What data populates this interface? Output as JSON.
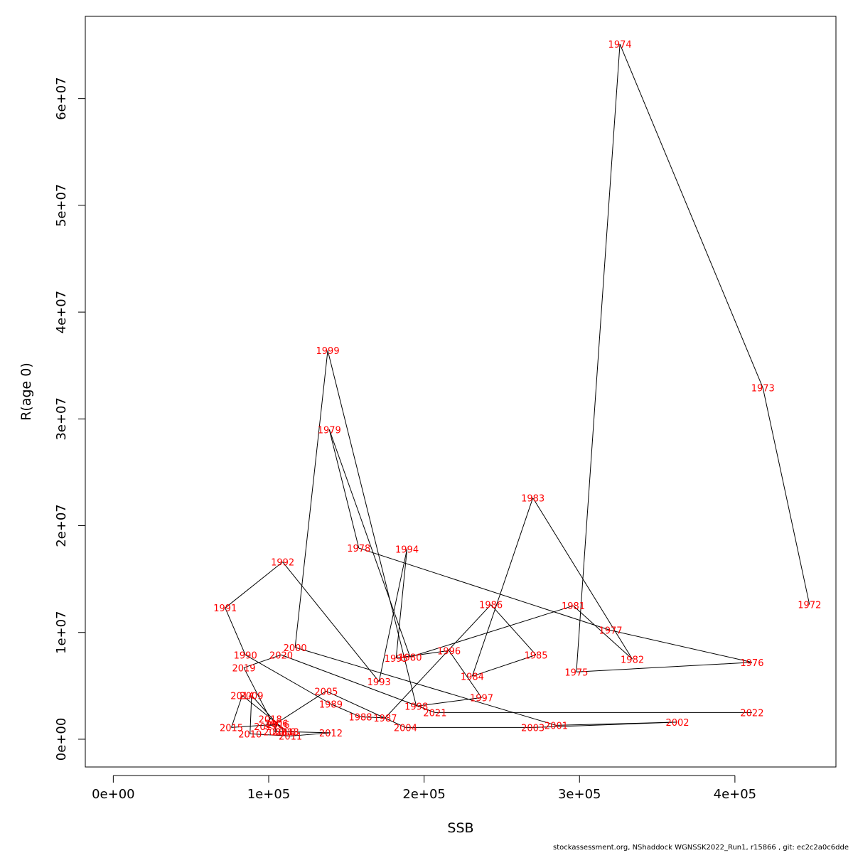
{
  "chart_data": {
    "type": "line",
    "xlabel": "SSB",
    "ylabel": "R(age 0)",
    "xlim": [
      -18000,
      465000
    ],
    "ylim": [
      -2600000,
      67700000
    ],
    "x_ticks": [
      {
        "value": 0,
        "label": "0e+00"
      },
      {
        "value": 100000,
        "label": "1e+05"
      },
      {
        "value": 200000,
        "label": "2e+05"
      },
      {
        "value": 300000,
        "label": "3e+05"
      },
      {
        "value": 400000,
        "label": "4e+05"
      }
    ],
    "y_ticks": [
      {
        "value": 0,
        "label": "0e+00"
      },
      {
        "value": 10000000,
        "label": "1e+07"
      },
      {
        "value": 20000000,
        "label": "2e+07"
      },
      {
        "value": 30000000,
        "label": "3e+07"
      },
      {
        "value": 40000000,
        "label": "4e+07"
      },
      {
        "value": 50000000,
        "label": "5e+07"
      },
      {
        "value": 60000000,
        "label": "6e+07"
      }
    ],
    "line_color": "#000000",
    "label_color": "#ff0000",
    "points": [
      {
        "year": "1972",
        "ssb": 448000,
        "r": 12600000
      },
      {
        "year": "1973",
        "ssb": 418000,
        "r": 32900000
      },
      {
        "year": "1974",
        "ssb": 326000,
        "r": 65100000
      },
      {
        "year": "1975",
        "ssb": 298000,
        "r": 6300000
      },
      {
        "year": "1976",
        "ssb": 411000,
        "r": 7200000
      },
      {
        "year": "1977",
        "ssb": 320000,
        "r": 10200000
      },
      {
        "year": "1978",
        "ssb": 158000,
        "r": 17900000
      },
      {
        "year": "1979",
        "ssb": 139000,
        "r": 29000000
      },
      {
        "year": "1980",
        "ssb": 191000,
        "r": 7700000
      },
      {
        "year": "1981",
        "ssb": 296000,
        "r": 12500000
      },
      {
        "year": "1982",
        "ssb": 334000,
        "r": 7500000
      },
      {
        "year": "1983",
        "ssb": 270000,
        "r": 22600000
      },
      {
        "year": "1984",
        "ssb": 231000,
        "r": 5900000
      },
      {
        "year": "1985",
        "ssb": 272000,
        "r": 7900000
      },
      {
        "year": "1986",
        "ssb": 243000,
        "r": 12600000
      },
      {
        "year": "1987",
        "ssb": 175000,
        "r": 2000000
      },
      {
        "year": "1988",
        "ssb": 159000,
        "r": 2100000
      },
      {
        "year": "1989",
        "ssb": 140000,
        "r": 3300000
      },
      {
        "year": "1990",
        "ssb": 85000,
        "r": 7900000
      },
      {
        "year": "1991",
        "ssb": 72000,
        "r": 12300000
      },
      {
        "year": "1992",
        "ssb": 109000,
        "r": 16600000
      },
      {
        "year": "1993",
        "ssb": 171000,
        "r": 5400000
      },
      {
        "year": "1994",
        "ssb": 189000,
        "r": 17800000
      },
      {
        "year": "1995",
        "ssb": 182000,
        "r": 7600000
      },
      {
        "year": "1996",
        "ssb": 216000,
        "r": 8300000
      },
      {
        "year": "1997",
        "ssb": 237000,
        "r": 3900000
      },
      {
        "year": "1998",
        "ssb": 195000,
        "r": 3100000
      },
      {
        "year": "1999",
        "ssb": 138000,
        "r": 36400000
      },
      {
        "year": "2000",
        "ssb": 117000,
        "r": 8600000
      },
      {
        "year": "2001",
        "ssb": 285000,
        "r": 1300000
      },
      {
        "year": "2002",
        "ssb": 363000,
        "r": 1600000
      },
      {
        "year": "2003",
        "ssb": 270000,
        "r": 1100000
      },
      {
        "year": "2004",
        "ssb": 188000,
        "r": 1100000
      },
      {
        "year": "2005",
        "ssb": 137000,
        "r": 4500000
      },
      {
        "year": "2006",
        "ssb": 105000,
        "r": 1500000
      },
      {
        "year": "2007",
        "ssb": 104000,
        "r": 700000
      },
      {
        "year": "2008",
        "ssb": 110000,
        "r": 700000
      },
      {
        "year": "2009",
        "ssb": 89000,
        "r": 4100000
      },
      {
        "year": "2010",
        "ssb": 88000,
        "r": 500000
      },
      {
        "year": "2011",
        "ssb": 114000,
        "r": 300000
      },
      {
        "year": "2012",
        "ssb": 140000,
        "r": 600000
      },
      {
        "year": "2013",
        "ssb": 112000,
        "r": 700000
      },
      {
        "year": "2014",
        "ssb": 83000,
        "r": 4100000
      },
      {
        "year": "2015",
        "ssb": 76000,
        "r": 1100000
      },
      {
        "year": "2016",
        "ssb": 106000,
        "r": 1400000
      },
      {
        "year": "2017",
        "ssb": 98000,
        "r": 1200000
      },
      {
        "year": "2018",
        "ssb": 101000,
        "r": 1900000
      },
      {
        "year": "2019",
        "ssb": 84000,
        "r": 6700000
      },
      {
        "year": "2020",
        "ssb": 108000,
        "r": 7900000
      },
      {
        "year": "2021",
        "ssb": 207000,
        "r": 2500000
      },
      {
        "year": "2022",
        "ssb": 411000,
        "r": 2500000
      }
    ]
  },
  "footer": "stockassessment.org, NShaddock  WGNSSK2022_Run1, r15866 , git: ec2c2a0c6dde"
}
